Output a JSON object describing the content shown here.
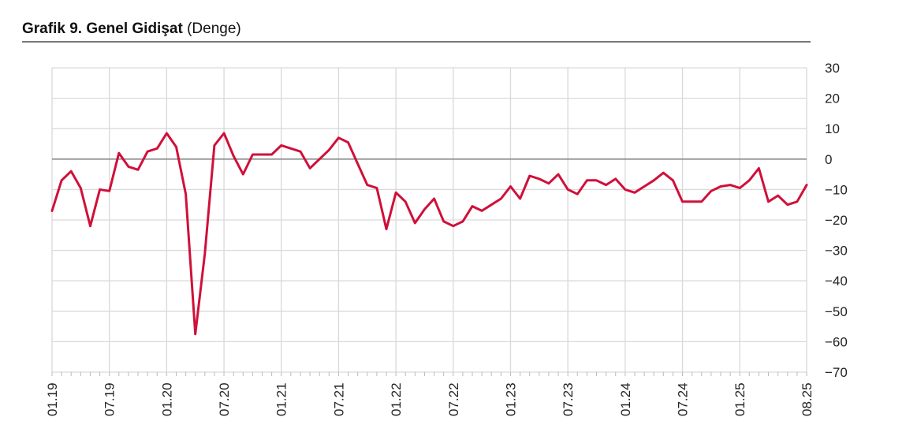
{
  "header": {
    "title_bold": "Grafik 9. Genel Gidişat",
    "title_rest": "(Denge)"
  },
  "colors": {
    "series": "#d0103a",
    "grid": "#d9d9d9",
    "zero_line": "#8a8a8a"
  },
  "chart_data": {
    "type": "line",
    "title": "Grafik 9. Genel Gidişat (Denge)",
    "xlabel": "",
    "ylabel": "",
    "ylim": [
      -70,
      30
    ],
    "yticks": [
      30,
      20,
      10,
      0,
      -10,
      -20,
      -30,
      -40,
      -50,
      -60,
      -70
    ],
    "xtick_labels": [
      "01.19",
      "07.19",
      "01.20",
      "07.20",
      "01.21",
      "07.21",
      "01.22",
      "07.22",
      "01.23",
      "07.23",
      "01.24",
      "07.24",
      "01.25",
      "08.25"
    ],
    "xtick_months": [
      0,
      6,
      12,
      18,
      24,
      30,
      36,
      42,
      48,
      54,
      60,
      66,
      72,
      79
    ],
    "grid": true,
    "legend": "none",
    "series": [
      {
        "name": "",
        "x": [
          "01.19",
          "02.19",
          "03.19",
          "04.19",
          "05.19",
          "06.19",
          "07.19",
          "08.19",
          "09.19",
          "10.19",
          "11.19",
          "12.19",
          "01.20",
          "02.20",
          "03.20",
          "04.20",
          "05.20",
          "06.20",
          "07.20",
          "08.20",
          "09.20",
          "10.20",
          "11.20",
          "12.20",
          "01.21",
          "02.21",
          "03.21",
          "04.21",
          "05.21",
          "06.21",
          "07.21",
          "08.21",
          "09.21",
          "10.21",
          "11.21",
          "12.21",
          "01.22",
          "02.22",
          "03.22",
          "04.22",
          "05.22",
          "06.22",
          "07.22",
          "08.22",
          "09.22",
          "10.22",
          "11.22",
          "12.22",
          "01.23",
          "02.23",
          "03.23",
          "04.23",
          "05.23",
          "06.23",
          "07.23",
          "08.23",
          "09.23",
          "10.23",
          "11.23",
          "12.23",
          "01.24",
          "02.24",
          "03.24",
          "04.24",
          "05.24",
          "06.24",
          "07.24",
          "08.24",
          "09.24",
          "10.24",
          "11.24",
          "12.24",
          "01.25",
          "02.25",
          "03.25",
          "04.25",
          "05.25",
          "06.25",
          "07.25",
          "08.25"
        ],
        "values": [
          -17,
          -7,
          -4,
          -9.5,
          -22,
          -10,
          -10.5,
          2,
          -2.5,
          -3.5,
          2.5,
          3.5,
          8.5,
          4,
          -11.5,
          -57.5,
          -31,
          4.5,
          8.5,
          1,
          -5,
          1.5,
          1.5,
          1.5,
          4.5,
          3.5,
          2.5,
          -3,
          0,
          3,
          7,
          5.5,
          -1.5,
          -8.5,
          -9.5,
          -23,
          -11,
          -14,
          -21,
          -16.5,
          -13,
          -20.5,
          -22,
          -20.5,
          -15.5,
          -17,
          -15,
          -13,
          -9,
          -13,
          -5.5,
          -6.5,
          -8,
          -5,
          -10,
          -11.5,
          -7,
          -7,
          -8.5,
          -6.5,
          -10,
          -11,
          -9,
          -7,
          -4.5,
          -7,
          -14,
          -14,
          -14,
          -10.5,
          -9,
          -8.5,
          -9.5,
          -7,
          -3,
          -14,
          -12,
          -15,
          -14,
          -8.5
        ]
      }
    ]
  }
}
